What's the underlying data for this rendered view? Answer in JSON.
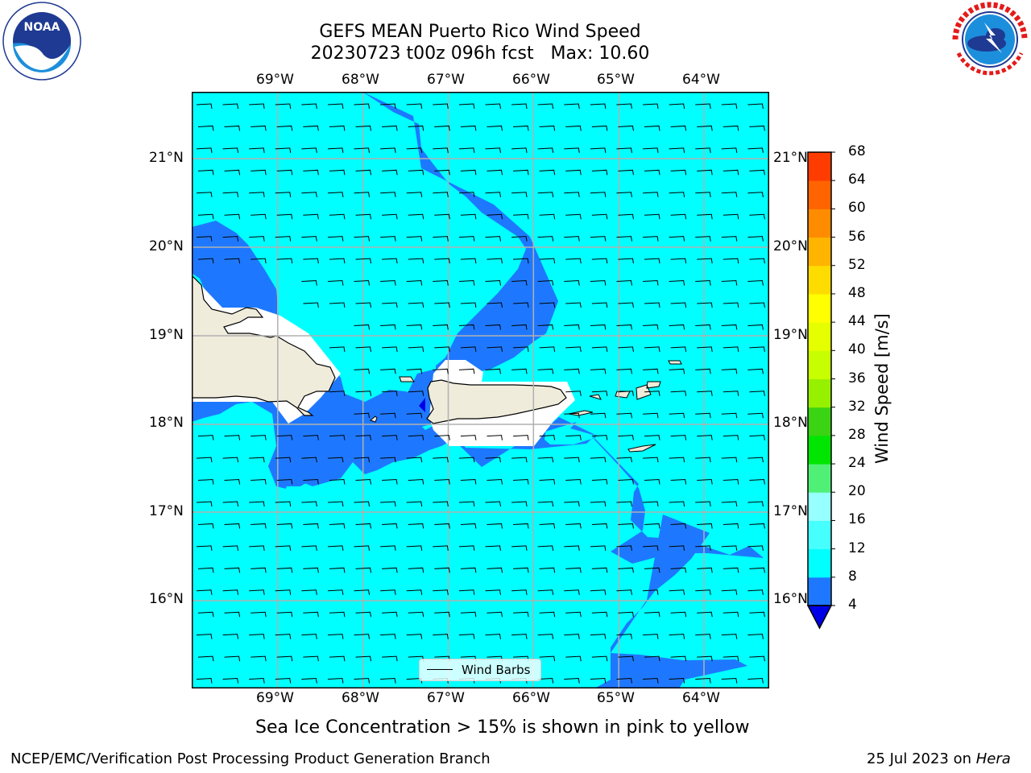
{
  "title_line1": "GEFS MEAN Puerto Rico Wind Speed",
  "title_line2": "20230723 t00z 096h fcst   Max: 10.60",
  "logos": {
    "left": "NOAA",
    "left_ring": "NATIONAL OCEANIC AND ATMOSPHERIC ADMINISTRATION · U.S. DEPARTMENT OF COMMERCE",
    "right_ring": "NATIONAL WEATHER SERVICE"
  },
  "lon_labels": [
    "69°W",
    "68°W",
    "67°W",
    "66°W",
    "65°W",
    "64°W"
  ],
  "lat_labels": [
    "21°N",
    "20°N",
    "19°N",
    "18°N",
    "17°N",
    "16°N"
  ],
  "legend_label": "Wind Barbs",
  "colorbar": {
    "label": "Wind Speed [m/s]",
    "ticks": [
      "68",
      "64",
      "60",
      "56",
      "52",
      "48",
      "44",
      "40",
      "36",
      "32",
      "28",
      "24",
      "20",
      "16",
      "12",
      "8",
      "4"
    ],
    "levels": [
      4,
      8,
      12,
      16,
      20,
      24,
      28,
      32,
      36,
      40,
      44,
      48,
      52,
      56,
      60,
      64,
      68
    ],
    "colors": [
      "#1e78ff",
      "#00ffff",
      "#46ffff",
      "#96ffff",
      "#50f077",
      "#00e600",
      "#3ad414",
      "#96f000",
      "#c8ff00",
      "#e6ff00",
      "#ffff00",
      "#ffdc00",
      "#ffb400",
      "#ff8c00",
      "#ff6400",
      "#ff3c00",
      "#ff0000"
    ],
    "under_color": "#0000e6"
  },
  "map_colors": {
    "low_wind_blue": "#1e78ff",
    "cyan": "#00ffff",
    "land": "#efecdc",
    "mask": "#ffffff"
  },
  "note": "Sea Ice Concentration > 15% is shown in pink to yellow",
  "footer_left": "NCEP/EMC/Verification Post Processing Product Generation Branch",
  "footer_date": "25 Jul 2023 on",
  "footer_host": "Hera"
}
